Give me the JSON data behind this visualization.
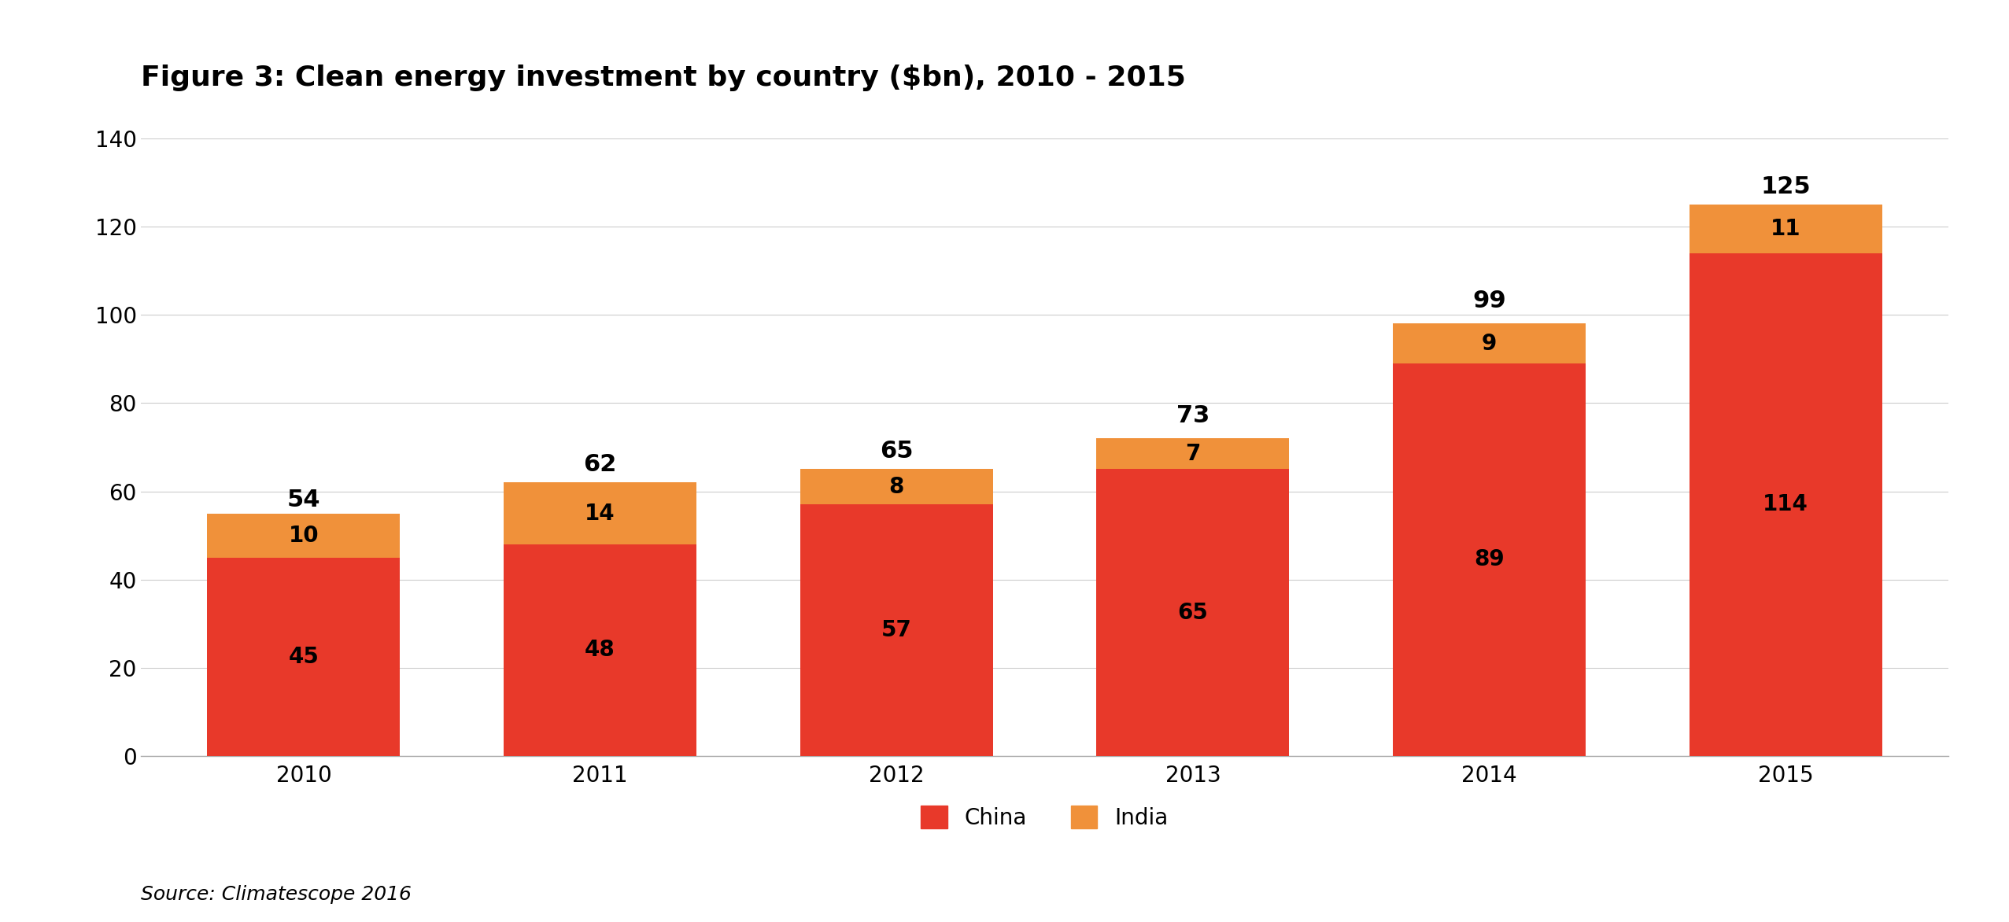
{
  "title": "Figure 3: Clean energy investment by country ($bn), 2010 - 2015",
  "years": [
    "2010",
    "2011",
    "2012",
    "2013",
    "2014",
    "2015"
  ],
  "china_values": [
    45,
    48,
    57,
    65,
    89,
    114
  ],
  "india_values": [
    10,
    14,
    8,
    7,
    9,
    11
  ],
  "totals": [
    54,
    62,
    65,
    73,
    99,
    125
  ],
  "china_color": "#e8392a",
  "india_color": "#f0913a",
  "ylim": [
    0,
    140
  ],
  "yticks": [
    0,
    20,
    40,
    60,
    80,
    100,
    120,
    140
  ],
  "bar_width": 0.65,
  "legend_labels": [
    "China",
    "India"
  ],
  "source_text": "Source: Climatescope 2016",
  "title_fontsize": 26,
  "tick_fontsize": 20,
  "label_fontsize": 20,
  "legend_fontsize": 20,
  "source_fontsize": 18,
  "total_fontsize": 22,
  "background_color": "#ffffff",
  "grid_color": "#cccccc"
}
